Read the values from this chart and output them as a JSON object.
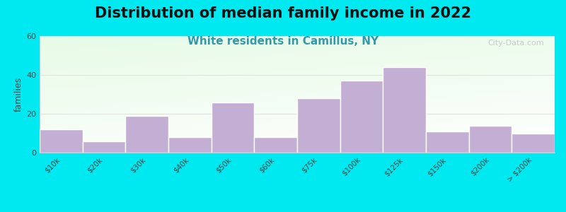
{
  "title": "Distribution of median family income in 2022",
  "subtitle": "White residents in Camillus, NY",
  "categories": [
    "$10k",
    "$20k",
    "$30k",
    "$40k",
    "$50k",
    "$60k",
    "$75k",
    "$100k",
    "$125k",
    "$150k",
    "$200k",
    "> $200k"
  ],
  "values": [
    12,
    6,
    19,
    8,
    26,
    8,
    28,
    37,
    44,
    11,
    14,
    10
  ],
  "bar_color": "#c4afd4",
  "bar_edge_color": "#ffffff",
  "ylabel": "families",
  "ylim": [
    0,
    60
  ],
  "yticks": [
    0,
    20,
    40,
    60
  ],
  "background_outer": "#00e8f0",
  "plot_bg_topleft": "#d8ecd0",
  "plot_bg_right": "#f5f5f0",
  "plot_bg_bottom": "#f0f0ee",
  "title_fontsize": 15,
  "subtitle_fontsize": 11,
  "subtitle_color": "#3399aa",
  "watermark_text": "City-Data.com",
  "title_color": "#111111",
  "grid_color": "#e0e0e0"
}
